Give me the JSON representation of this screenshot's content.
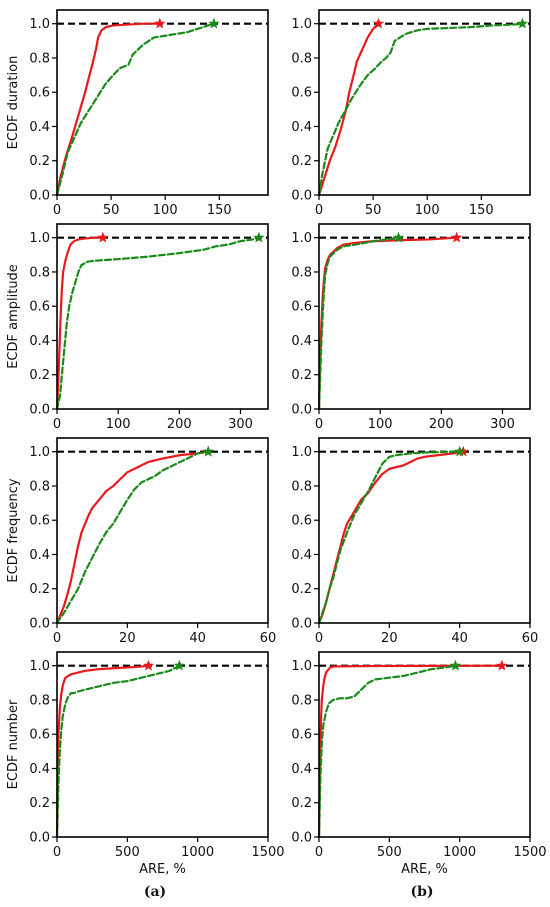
{
  "colors": {
    "red_series": "#e8191c",
    "green_series": "#1a8a1a",
    "reference_line": "#000000",
    "axes": "#000000"
  },
  "panel_labels": [
    "(a)",
    "(b)"
  ],
  "chart_data": [
    {
      "type": "line",
      "row": 0,
      "col": 0,
      "ylabel": "ECDF duration",
      "xlabel": "",
      "xlim": [
        0,
        195
      ],
      "ylim": [
        0,
        1.08
      ],
      "xticks": [
        0,
        50,
        100,
        150
      ],
      "yticks": [
        0.0,
        0.2,
        0.4,
        0.6,
        0.8,
        1.0
      ],
      "reference_y": 1.0,
      "series": [
        {
          "style": "red-solid",
          "x": [
            0,
            3,
            8,
            14,
            20,
            26,
            30,
            33,
            36,
            38,
            41,
            45,
            52,
            65,
            80,
            95
          ],
          "y": [
            0,
            0.1,
            0.22,
            0.34,
            0.47,
            0.6,
            0.7,
            0.77,
            0.85,
            0.92,
            0.96,
            0.98,
            0.99,
            0.995,
            1.0,
            1.0
          ]
        },
        {
          "style": "green-dashed",
          "x": [
            0,
            5,
            10,
            15,
            22,
            30,
            35,
            40,
            45,
            52,
            58,
            62,
            66,
            70,
            80,
            90,
            100,
            110,
            120,
            130,
            140,
            145
          ],
          "y": [
            0,
            0.12,
            0.25,
            0.32,
            0.42,
            0.5,
            0.55,
            0.6,
            0.65,
            0.7,
            0.74,
            0.75,
            0.76,
            0.82,
            0.88,
            0.92,
            0.93,
            0.94,
            0.95,
            0.97,
            0.99,
            1.0
          ]
        }
      ]
    },
    {
      "type": "line",
      "row": 0,
      "col": 1,
      "ylabel": "",
      "xlabel": "",
      "xlim": [
        0,
        195
      ],
      "ylim": [
        0,
        1.08
      ],
      "xticks": [
        0,
        50,
        100,
        150
      ],
      "yticks": [
        0.0,
        0.2,
        0.4,
        0.6,
        0.8,
        1.0
      ],
      "reference_y": 1.0,
      "series": [
        {
          "style": "red-solid",
          "x": [
            0,
            5,
            10,
            15,
            20,
            25,
            28,
            32,
            35,
            40,
            45,
            50,
            55
          ],
          "y": [
            0,
            0.1,
            0.2,
            0.28,
            0.38,
            0.5,
            0.6,
            0.7,
            0.78,
            0.85,
            0.92,
            0.97,
            1.0
          ]
        },
        {
          "style": "green-dashed",
          "x": [
            0,
            3,
            8,
            12,
            18,
            25,
            30,
            38,
            45,
            52,
            58,
            62,
            66,
            70,
            80,
            90,
            100,
            120,
            140,
            160,
            180,
            188
          ],
          "y": [
            0,
            0.12,
            0.27,
            0.33,
            0.42,
            0.5,
            0.56,
            0.64,
            0.7,
            0.74,
            0.78,
            0.8,
            0.83,
            0.9,
            0.94,
            0.96,
            0.97,
            0.975,
            0.98,
            0.99,
            0.995,
            1.0
          ]
        }
      ]
    },
    {
      "type": "line",
      "row": 1,
      "col": 0,
      "ylabel": "ECDF amplitude",
      "xlabel": "",
      "xlim": [
        0,
        345
      ],
      "ylim": [
        0,
        1.08
      ],
      "xticks": [
        0,
        100,
        200,
        300
      ],
      "yticks": [
        0.0,
        0.2,
        0.4,
        0.6,
        0.8,
        1.0
      ],
      "reference_y": 1.0,
      "series": [
        {
          "style": "red-solid",
          "x": [
            0,
            2,
            4,
            6,
            8,
            10,
            14,
            18,
            22,
            28,
            35,
            45,
            60,
            75
          ],
          "y": [
            0,
            0.15,
            0.35,
            0.55,
            0.7,
            0.8,
            0.87,
            0.92,
            0.96,
            0.98,
            0.99,
            0.995,
            1.0,
            1.0
          ]
        },
        {
          "style": "green-dashed",
          "x": [
            0,
            5,
            8,
            12,
            16,
            20,
            25,
            30,
            35,
            40,
            50,
            60,
            80,
            100,
            150,
            200,
            240,
            260,
            280,
            300,
            320,
            330
          ],
          "y": [
            0,
            0.08,
            0.2,
            0.35,
            0.5,
            0.6,
            0.68,
            0.74,
            0.8,
            0.84,
            0.86,
            0.865,
            0.87,
            0.875,
            0.89,
            0.91,
            0.93,
            0.95,
            0.96,
            0.98,
            0.99,
            1.0
          ]
        }
      ]
    },
    {
      "type": "line",
      "row": 1,
      "col": 1,
      "ylabel": "",
      "xlabel": "",
      "xlim": [
        0,
        345
      ],
      "ylim": [
        0,
        1.08
      ],
      "xticks": [
        0,
        100,
        200,
        300
      ],
      "yticks": [
        0.0,
        0.2,
        0.4,
        0.6,
        0.8,
        1.0
      ],
      "reference_y": 1.0,
      "series": [
        {
          "style": "red-solid",
          "x": [
            0,
            2,
            4,
            6,
            8,
            10,
            14,
            18,
            24,
            30,
            40,
            60,
            90,
            130,
            180,
            225
          ],
          "y": [
            0,
            0.3,
            0.5,
            0.65,
            0.75,
            0.82,
            0.87,
            0.9,
            0.92,
            0.94,
            0.96,
            0.97,
            0.98,
            0.985,
            0.99,
            1.0
          ]
        },
        {
          "style": "green-dashed",
          "x": [
            0,
            2,
            4,
            6,
            8,
            10,
            14,
            18,
            24,
            30,
            40,
            60,
            90,
            110,
            130
          ],
          "y": [
            0,
            0.2,
            0.4,
            0.55,
            0.68,
            0.78,
            0.85,
            0.89,
            0.91,
            0.93,
            0.95,
            0.96,
            0.98,
            0.99,
            1.0
          ]
        }
      ]
    },
    {
      "type": "line",
      "row": 2,
      "col": 0,
      "ylabel": "ECDF frequency",
      "xlabel": "",
      "xlim": [
        0,
        60
      ],
      "ylim": [
        0,
        1.08
      ],
      "xticks": [
        0,
        20,
        40,
        60
      ],
      "yticks": [
        0.0,
        0.2,
        0.4,
        0.6,
        0.8,
        1.0
      ],
      "reference_y": 1.0,
      "series": [
        {
          "style": "red-solid",
          "x": [
            0,
            1,
            2,
            3,
            4,
            5,
            6,
            7,
            8,
            9,
            10,
            12,
            14,
            16,
            18,
            20,
            22,
            24,
            26,
            30,
            35,
            40,
            43
          ],
          "y": [
            0,
            0.05,
            0.1,
            0.17,
            0.25,
            0.35,
            0.45,
            0.53,
            0.58,
            0.63,
            0.67,
            0.72,
            0.77,
            0.8,
            0.84,
            0.88,
            0.9,
            0.92,
            0.94,
            0.96,
            0.98,
            0.99,
            1.0
          ]
        },
        {
          "style": "green-dashed",
          "x": [
            0,
            2,
            4,
            6,
            8,
            10,
            12,
            14,
            16,
            18,
            20,
            22,
            24,
            26,
            28,
            30,
            32,
            34,
            36,
            38,
            40,
            43
          ],
          "y": [
            0,
            0.06,
            0.13,
            0.2,
            0.3,
            0.38,
            0.46,
            0.53,
            0.58,
            0.65,
            0.72,
            0.78,
            0.82,
            0.84,
            0.86,
            0.89,
            0.91,
            0.93,
            0.95,
            0.97,
            0.99,
            1.0
          ]
        }
      ]
    },
    {
      "type": "line",
      "row": 2,
      "col": 1,
      "ylabel": "",
      "xlabel": "",
      "xlim": [
        0,
        60
      ],
      "ylim": [
        0,
        1.08
      ],
      "xticks": [
        0,
        20,
        40,
        60
      ],
      "yticks": [
        0.0,
        0.2,
        0.4,
        0.6,
        0.8,
        1.0
      ],
      "reference_y": 1.0,
      "series": [
        {
          "style": "red-solid",
          "x": [
            0,
            1,
            2,
            3,
            4,
            5,
            6,
            7,
            8,
            10,
            12,
            14,
            16,
            18,
            20,
            22,
            24,
            26,
            28,
            30,
            34,
            38,
            41
          ],
          "y": [
            0,
            0.05,
            0.12,
            0.2,
            0.28,
            0.36,
            0.44,
            0.52,
            0.58,
            0.65,
            0.72,
            0.76,
            0.82,
            0.87,
            0.9,
            0.91,
            0.92,
            0.94,
            0.96,
            0.97,
            0.98,
            0.99,
            1.0
          ]
        },
        {
          "style": "green-dashed",
          "x": [
            0,
            1,
            2,
            3,
            4,
            5,
            6,
            8,
            10,
            12,
            14,
            16,
            18,
            20,
            22,
            24,
            26,
            30,
            35,
            40
          ],
          "y": [
            0,
            0.06,
            0.12,
            0.2,
            0.26,
            0.34,
            0.42,
            0.53,
            0.63,
            0.7,
            0.77,
            0.85,
            0.93,
            0.97,
            0.98,
            0.985,
            0.99,
            0.995,
            0.998,
            1.0
          ]
        }
      ]
    },
    {
      "type": "line",
      "row": 3,
      "col": 0,
      "ylabel": "ECDF number",
      "xlabel": "ARE, %",
      "xlim": [
        0,
        1500
      ],
      "ylim": [
        0,
        1.08
      ],
      "xticks": [
        0,
        500,
        1000,
        1500
      ],
      "yticks": [
        0.0,
        0.2,
        0.4,
        0.6,
        0.8,
        1.0
      ],
      "reference_y": 1.0,
      "series": [
        {
          "style": "red-solid",
          "x": [
            0,
            5,
            10,
            20,
            30,
            40,
            50,
            60,
            80,
            100,
            150,
            200,
            300,
            400,
            500,
            600,
            650
          ],
          "y": [
            0,
            0.4,
            0.6,
            0.75,
            0.83,
            0.88,
            0.91,
            0.93,
            0.94,
            0.95,
            0.96,
            0.97,
            0.98,
            0.985,
            0.99,
            0.995,
            1.0
          ]
        },
        {
          "style": "green-dashed",
          "x": [
            0,
            10,
            20,
            30,
            40,
            60,
            80,
            100,
            120,
            150,
            200,
            300,
            400,
            500,
            600,
            700,
            800,
            870
          ],
          "y": [
            0,
            0.3,
            0.5,
            0.62,
            0.7,
            0.78,
            0.82,
            0.84,
            0.84,
            0.85,
            0.86,
            0.88,
            0.9,
            0.91,
            0.93,
            0.95,
            0.97,
            1.0
          ]
        }
      ]
    },
    {
      "type": "line",
      "row": 3,
      "col": 1,
      "ylabel": "",
      "xlabel": "ARE, %",
      "xlim": [
        0,
        1500
      ],
      "ylim": [
        0,
        1.08
      ],
      "xticks": [
        0,
        500,
        1000,
        1500
      ],
      "yticks": [
        0.0,
        0.2,
        0.4,
        0.6,
        0.8,
        1.0
      ],
      "reference_y": 1.0,
      "series": [
        {
          "style": "red-solid",
          "x": [
            0,
            5,
            10,
            15,
            20,
            30,
            40,
            50,
            60,
            70,
            80,
            100,
            200,
            400,
            800,
            1300
          ],
          "y": [
            0,
            0.3,
            0.55,
            0.7,
            0.8,
            0.88,
            0.93,
            0.96,
            0.97,
            0.98,
            0.99,
            0.995,
            0.997,
            0.998,
            0.999,
            1.0
          ]
        },
        {
          "style": "green-dashed",
          "x": [
            0,
            10,
            20,
            30,
            50,
            70,
            100,
            150,
            200,
            250,
            300,
            350,
            400,
            500,
            600,
            700,
            800,
            900,
            970
          ],
          "y": [
            0,
            0.35,
            0.55,
            0.65,
            0.73,
            0.78,
            0.8,
            0.81,
            0.81,
            0.82,
            0.86,
            0.9,
            0.92,
            0.93,
            0.94,
            0.96,
            0.98,
            0.99,
            1.0
          ]
        }
      ]
    }
  ]
}
